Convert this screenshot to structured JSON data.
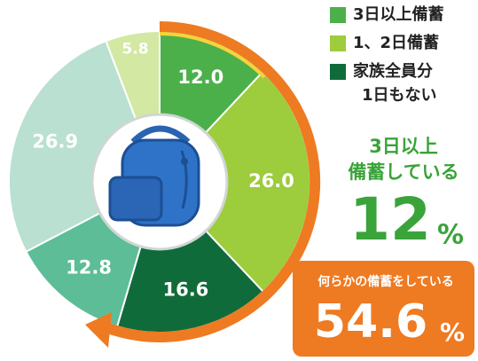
{
  "chart_data": {
    "type": "donut",
    "values": [
      12.0,
      26.0,
      16.6,
      12.8,
      26.9,
      5.8
    ],
    "value_labels": [
      "12.0",
      "26.0",
      "16.6",
      "12.8",
      "26.9",
      "5.8"
    ],
    "colors": [
      "#4cb04a",
      "#9dcc3c",
      "#106b3a",
      "#5cbd97",
      "#b9e0d0",
      "#d3e8a2"
    ],
    "legend": [
      {
        "name": "3日以上備蓄",
        "color": "#4cb04a"
      },
      {
        "name": "1、2日備蓄",
        "color": "#9dcc3c"
      },
      {
        "name": [
          "家族全員分",
          "1日もない"
        ],
        "color": "#106b3a"
      }
    ],
    "annotations": [
      {
        "text": [
          "3日以上",
          "備蓄している"
        ],
        "value": "12",
        "unit": "%"
      },
      {
        "text": "何らかの備蓄をしている",
        "value": "54.6",
        "unit": "%"
      }
    ]
  }
}
